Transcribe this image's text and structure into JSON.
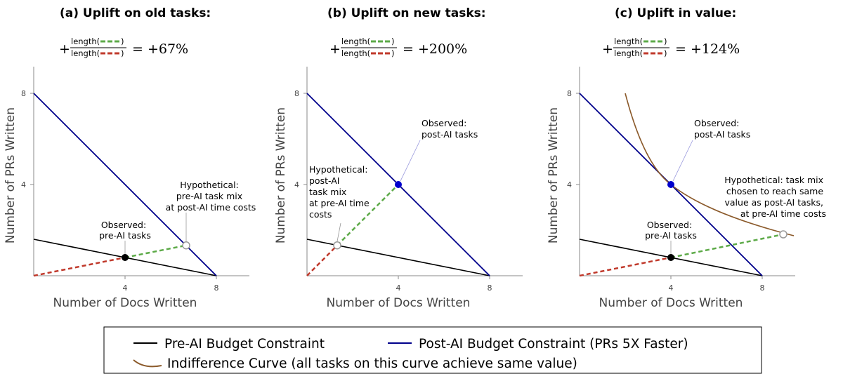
{
  "chart_data": [
    {
      "type": "line",
      "panel": "a",
      "title": "(a) Uplift on old tasks:",
      "equation": {
        "prefix": "+",
        "numerator": "length(",
        "denominator": "length(",
        "result": "= +67%"
      },
      "xlabel": "Number of Docs Written",
      "ylabel": "Number of PRs Written",
      "xticks": [
        "4",
        "8"
      ],
      "yticks": [
        "4",
        "8"
      ],
      "xlim": [
        0,
        9.5
      ],
      "ylim": [
        0,
        9.5
      ],
      "series": [
        {
          "name": "Pre-AI Budget Constraint",
          "x": [
            0,
            8
          ],
          "y": [
            1.6,
            0
          ],
          "color": "#000000",
          "style": "solid"
        },
        {
          "name": "Post-AI Budget Constraint (PRs 5X Faster)",
          "x": [
            0,
            8
          ],
          "y": [
            8,
            0
          ],
          "color": "#00008B",
          "style": "solid"
        }
      ],
      "segments": [
        {
          "x": [
            0,
            4
          ],
          "y": [
            0,
            0.8
          ],
          "color": "#C0392B",
          "style": "dashed"
        },
        {
          "x": [
            4,
            6.67
          ],
          "y": [
            0.8,
            1.33
          ],
          "color": "#5DAA48",
          "style": "dashed"
        }
      ],
      "points": [
        {
          "x": 4,
          "y": 0.8,
          "fill": "#000000"
        },
        {
          "x": 6.67,
          "y": 1.33,
          "fill": "#ffffff"
        }
      ],
      "annotations": [
        {
          "lines": [
            "Observed:",
            "pre-AI tasks"
          ]
        },
        {
          "lines": [
            "Hypothetical:",
            "pre-AI task mix",
            "at post-AI time costs"
          ]
        }
      ]
    },
    {
      "type": "line",
      "panel": "b",
      "title": "(b) Uplift on new tasks:",
      "equation": {
        "prefix": "+",
        "numerator": "length(",
        "denominator": "length(",
        "result": "= +200%"
      },
      "xlabel": "Number of Docs Written",
      "ylabel": "Number of PRs Written",
      "xticks": [
        "4",
        "8"
      ],
      "yticks": [
        "4",
        "8"
      ],
      "xlim": [
        0,
        9.5
      ],
      "ylim": [
        0,
        9.5
      ],
      "series": [
        {
          "name": "Pre-AI Budget Constraint",
          "x": [
            0,
            8
          ],
          "y": [
            1.6,
            0
          ],
          "color": "#000000",
          "style": "solid"
        },
        {
          "name": "Post-AI Budget Constraint (PRs 5X Faster)",
          "x": [
            0,
            8
          ],
          "y": [
            8,
            0
          ],
          "color": "#00008B",
          "style": "solid"
        }
      ],
      "segments": [
        {
          "x": [
            0,
            1.33
          ],
          "y": [
            0,
            1.33
          ],
          "color": "#C0392B",
          "style": "dashed"
        },
        {
          "x": [
            1.33,
            4
          ],
          "y": [
            1.33,
            4
          ],
          "color": "#5DAA48",
          "style": "dashed"
        }
      ],
      "points": [
        {
          "x": 4,
          "y": 4,
          "fill": "#0000CD"
        },
        {
          "x": 1.33,
          "y": 1.33,
          "fill": "#ffffff"
        }
      ],
      "annotations": [
        {
          "lines": [
            "Observed:",
            "post-AI tasks"
          ]
        },
        {
          "lines": [
            "Hypothetical:",
            "post-AI",
            "task mix",
            "at pre-AI time",
            "costs"
          ]
        }
      ]
    },
    {
      "type": "line",
      "panel": "c",
      "title": "(c) Uplift in value:",
      "equation": {
        "prefix": "+",
        "numerator": "length(",
        "denominator": "length(",
        "result": "= +124%"
      },
      "xlabel": "Number of Docs Written",
      "ylabel": "Number of PRs Written",
      "xticks": [
        "4",
        "8"
      ],
      "yticks": [
        "4",
        "8"
      ],
      "xlim": [
        0,
        9.5
      ],
      "ylim": [
        0,
        9.5
      ],
      "series": [
        {
          "name": "Pre-AI Budget Constraint",
          "x": [
            0,
            8
          ],
          "y": [
            1.6,
            0
          ],
          "color": "#000000",
          "style": "solid"
        },
        {
          "name": "Post-AI Budget Constraint (PRs 5X Faster)",
          "x": [
            0,
            8
          ],
          "y": [
            8,
            0
          ],
          "color": "#00008B",
          "style": "solid"
        },
        {
          "name": "Indifference Curve (all tasks on this curve achieve same value)",
          "curve": "y = 16/x",
          "xrange": [
            2,
            9.4
          ],
          "color": "#8B5A2B",
          "style": "solid"
        }
      ],
      "segments": [
        {
          "x": [
            0,
            4
          ],
          "y": [
            0,
            0.8
          ],
          "color": "#C0392B",
          "style": "dashed"
        },
        {
          "x": [
            4,
            8.96
          ],
          "y": [
            0.8,
            1.79
          ],
          "color": "#5DAA48",
          "style": "dashed"
        }
      ],
      "points": [
        {
          "x": 4,
          "y": 4,
          "fill": "#0000CD"
        },
        {
          "x": 4,
          "y": 0.8,
          "fill": "#000000"
        },
        {
          "x": 8.96,
          "y": 1.79,
          "fill": "#ffffff"
        }
      ],
      "annotations": [
        {
          "lines": [
            "Observed:",
            "post-AI tasks"
          ]
        },
        {
          "lines": [
            "Hypothetical:  task mix",
            "chosen to reach same",
            "value as post-AI tasks,",
            "at pre-AI time costs"
          ]
        },
        {
          "lines": [
            "Observed:",
            "pre-AI tasks"
          ]
        }
      ]
    }
  ],
  "legend": {
    "items": [
      {
        "label": "Pre-AI Budget Constraint",
        "color": "#000000"
      },
      {
        "label": "Post-AI Budget Constraint (PRs 5X Faster)",
        "color": "#00008B"
      },
      {
        "label": "Indifference Curve (all tasks on this curve achieve same value)",
        "color": "#8B5A2B"
      }
    ]
  },
  "colors": {
    "dash_red": "#C0392B",
    "dash_green": "#5DAA48",
    "pre_ai": "#000000",
    "post_ai": "#00008B",
    "indifference": "#8B5A2B"
  }
}
